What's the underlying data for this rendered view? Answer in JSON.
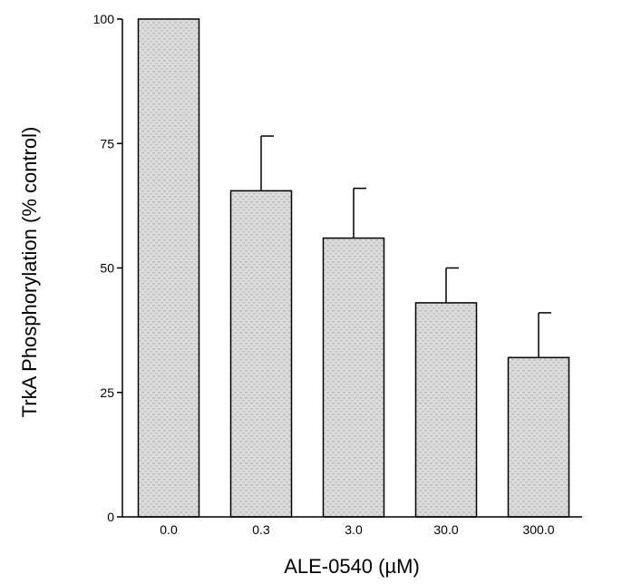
{
  "chart_data": {
    "type": "bar",
    "xlabel": "ALE-0540 (µM)",
    "ylabel": "TrkA Phosphorylation (% control)",
    "categories": [
      "0.0",
      "0.3",
      "3.0",
      "30.0",
      "300.0"
    ],
    "values": [
      100,
      65.5,
      56,
      43,
      32
    ],
    "error": [
      0,
      11,
      10,
      7,
      9
    ],
    "ylim": [
      0,
      100
    ],
    "yticks": [
      "0",
      "25",
      "50",
      "75",
      "100"
    ],
    "grid": false,
    "legend": "none",
    "colors": {
      "bar_fill": "#d7d7d7",
      "bar_texture": "#bdbdbd",
      "stroke": "#000000"
    }
  }
}
